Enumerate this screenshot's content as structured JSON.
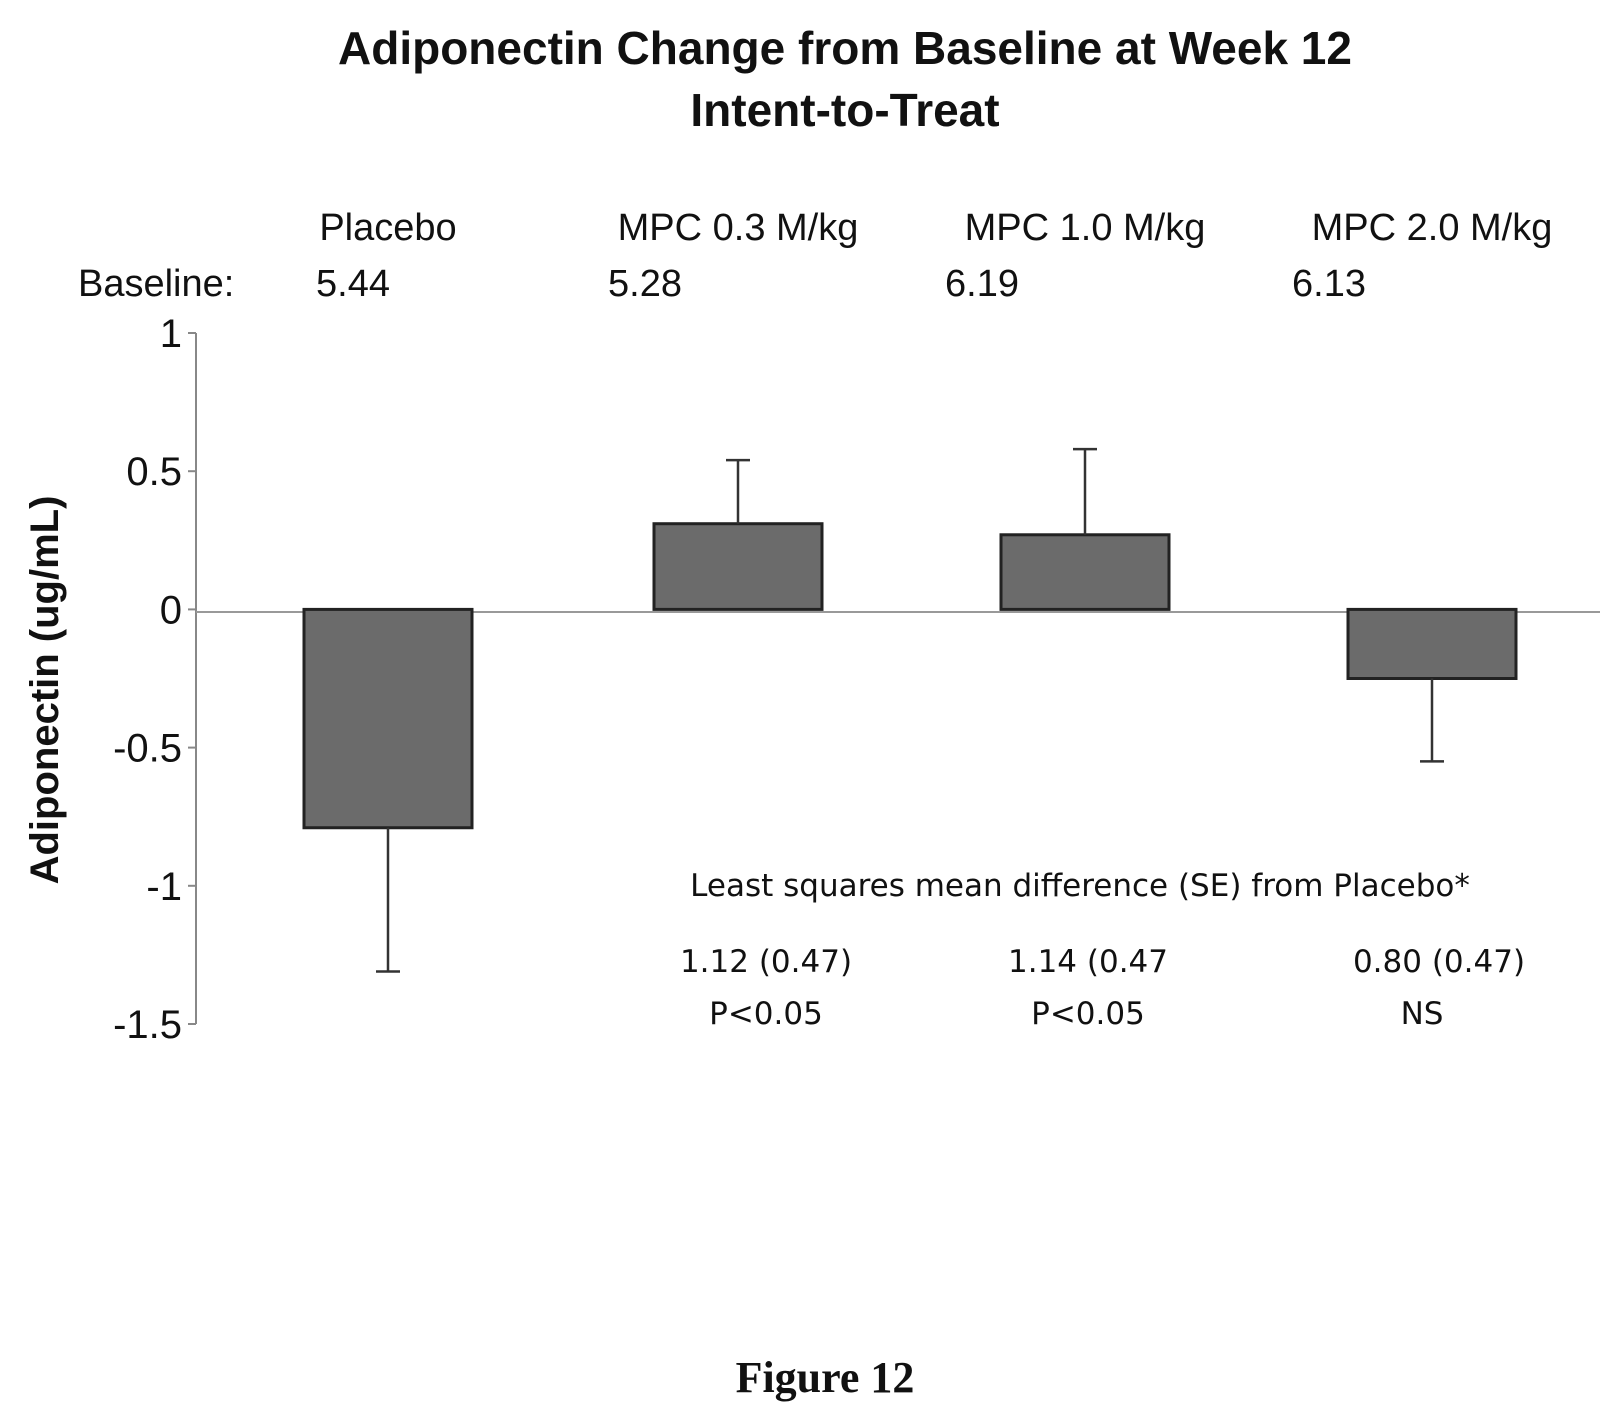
{
  "chart_data": {
    "type": "bar",
    "title": "Adiponectin Change from Baseline at Week 12",
    "subtitle": "Intent-to-Treat",
    "ylabel": "Adiponectin (ug/mL)",
    "ylim": [
      -1.5,
      1
    ],
    "yticks": [
      "1",
      "0.5",
      "0",
      "-0.5",
      "-1",
      "-1.5"
    ],
    "ytick_values": [
      1,
      0.5,
      0,
      -0.5,
      -1,
      -1.5
    ],
    "categories": [
      "Placebo",
      "MPC 0.3 M/kg",
      "MPC 1.0 M/kg",
      "MPC 2.0 M/kg"
    ],
    "values": [
      -0.79,
      0.31,
      0.27,
      -0.25
    ],
    "error_values": [
      0.52,
      0.23,
      0.31,
      0.3
    ],
    "baseline_label": "Baseline:",
    "baselines": [
      "5.44",
      "5.28",
      "6.19",
      "6.13"
    ],
    "bar_color": "#6b6b6b",
    "annotation": {
      "heading": "Least squares mean difference (SE) from Placebo*",
      "items": [
        {
          "diff": "1.12 (0.47)",
          "p": "P<0.05"
        },
        {
          "diff": "1.14 (0.47",
          "p": "P<0.05"
        },
        {
          "diff": "0.80 (0.47)",
          "p": "NS"
        }
      ]
    }
  },
  "figure_caption": "Figure 12"
}
